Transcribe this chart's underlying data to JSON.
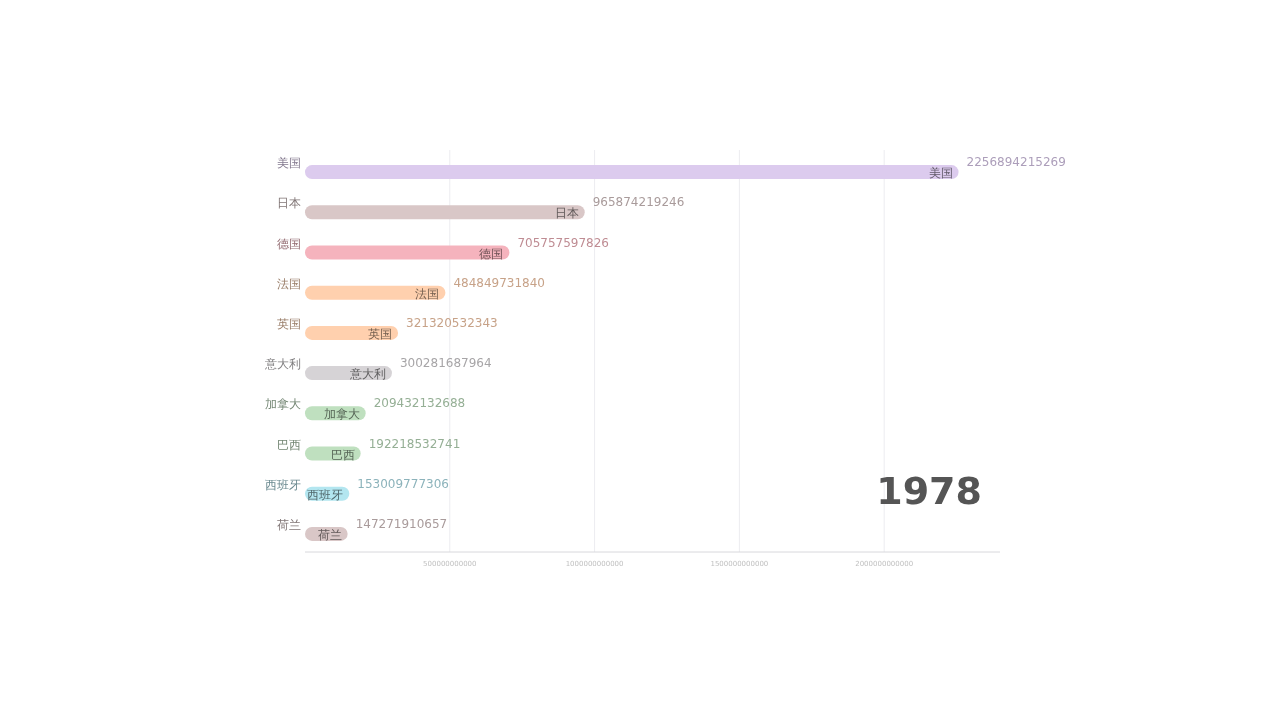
{
  "chart_data": {
    "type": "bar",
    "orientation": "horizontal",
    "categories": [
      "美国",
      "日本",
      "德国",
      "法国",
      "英国",
      "意大利",
      "加拿大",
      "巴西",
      "西班牙",
      "荷兰"
    ],
    "values": [
      2256894215269,
      965874219246,
      705757597826,
      484849731840,
      321320532343,
      300281687964,
      209432132688,
      192218532741,
      153009777306,
      147271910657
    ],
    "colors": [
      "#dccbee",
      "#d9c7c7",
      "#f5b3bd",
      "#ffd0ae",
      "#ffd0ae",
      "#d6d3d6",
      "#bfe0bf",
      "#bfe0bf",
      "#b3e6f0",
      "#d9c7c7"
    ],
    "xlim": [
      0,
      2400000000000
    ],
    "xticks": [
      500000000000,
      1000000000000,
      1500000000000,
      2000000000000
    ],
    "grid": "x",
    "data_labels": true,
    "annotations": [
      "1978"
    ]
  }
}
